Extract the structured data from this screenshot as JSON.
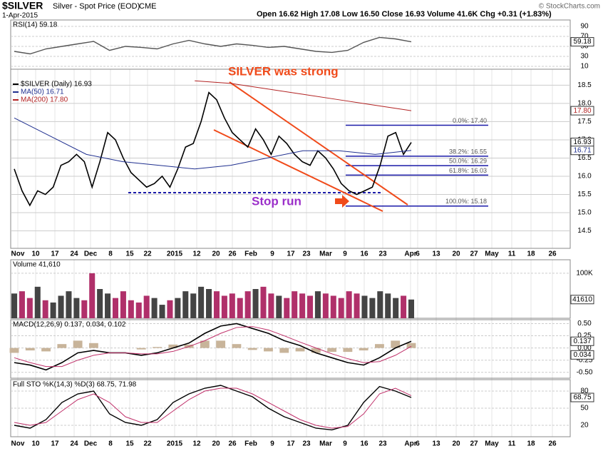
{
  "chart_data": [
    {
      "type": "header",
      "symbol": "$SILVER",
      "name": "Silver - Spot Price (EOD)",
      "exchange": "CME",
      "date": "1-Apr-2015",
      "quote": "Open 16.62 High 17.08 Low 16.50 Close 16.93 Volume 41.6K Chg +0.31 (+1.83%)",
      "credit": "© StockCharts.com",
      "categories": [
        "Nov",
        "10",
        "17",
        "24",
        "Dec",
        "8",
        "15",
        "22",
        "2015",
        "12",
        "20",
        "26",
        "Feb",
        "9",
        "17",
        "23",
        "Mar",
        "9",
        "16",
        "23",
        "Apr",
        "6",
        "13",
        "20",
        "27",
        "May",
        "11",
        "18",
        "26"
      ]
    },
    {
      "type": "line",
      "panel": "rsi",
      "legend": "RSI(14) 59.18",
      "tag": "59.18",
      "ylim": [
        0,
        100
      ],
      "yticks": [
        10,
        30,
        50,
        70,
        90
      ],
      "series": [
        {
          "name": "RSI",
          "color": "#555555",
          "values": [
            40,
            35,
            45,
            50,
            55,
            60,
            42,
            50,
            48,
            45,
            55,
            62,
            55,
            50,
            55,
            52,
            48,
            50,
            45,
            40,
            38,
            42,
            58,
            68,
            65,
            59.18
          ]
        }
      ]
    },
    {
      "type": "price",
      "panel": "price",
      "ylim": [
        14.0,
        18.9
      ],
      "yticks": [
        {
          "value": 14.5,
          "label": "14.5"
        },
        {
          "value": 15,
          "label": "15.0"
        },
        {
          "value": 15.5,
          "label": "15.5"
        },
        {
          "value": 16,
          "label": "16.0"
        },
        {
          "value": 16.5,
          "label": "16.5"
        },
        {
          "value": 17,
          "label": "17.0"
        },
        {
          "value": 17.5,
          "label": "17.5"
        },
        {
          "value": 18,
          "label": "18.0"
        },
        {
          "value": 18.5,
          "label": "18.5"
        }
      ],
      "series": [
        {
          "name": "$SILVER (Daily) 16.93",
          "tag": "16.93",
          "color": "#000000",
          "values": [
            16.2,
            15.6,
            15.2,
            15.6,
            15.5,
            15.7,
            16.3,
            16.4,
            16.6,
            16.4,
            15.7,
            16.4,
            17.2,
            17.0,
            16.5,
            16.1,
            15.9,
            15.7,
            15.8,
            16.0,
            15.7,
            16.2,
            16.8,
            16.9,
            17.5,
            18.3,
            18.1,
            17.6,
            17.2,
            17.0,
            16.8,
            17.3,
            17.0,
            16.6,
            17.1,
            16.9,
            16.6,
            16.4,
            16.3,
            16.7,
            16.5,
            16.2,
            15.8,
            15.6,
            15.5,
            15.6,
            15.7,
            16.3,
            17.1,
            17.2,
            16.6,
            16.93
          ]
        },
        {
          "name": "MA(50) 16.71",
          "tag": "16.71",
          "color": "#1f2f8f",
          "values": [
            17.6,
            17.1,
            16.6,
            16.4,
            16.3,
            16.2,
            16.3,
            16.5,
            16.7,
            16.7,
            16.6,
            16.71
          ]
        },
        {
          "name": "MA(200) 17.80",
          "tag": "17.80",
          "color": "#b22222",
          "values": [
            null,
            null,
            null,
            null,
            null,
            18.62,
            18.55,
            18.4,
            18.25,
            18.1,
            17.95,
            17.8
          ]
        }
      ],
      "levels": [
        {
          "value": 17.4,
          "label": "0.0%: 17.40"
        },
        {
          "value": 16.55,
          "label": "38.2%: 16.55"
        },
        {
          "value": 16.29,
          "label": "50.0%: 16.29"
        },
        {
          "value": 16.03,
          "label": "61.8%: 16.03"
        },
        {
          "value": 15.18,
          "label": "100.0%: 15.18"
        }
      ],
      "annotations": [
        "SILVER was strong",
        "Stop run"
      ]
    },
    {
      "type": "volume",
      "panel": "volume",
      "legend": "Volume 41,610",
      "tag": "41610",
      "ylim": [
        0,
        130000
      ],
      "yticks": [
        {
          "value": 100000,
          "label": "100K"
        }
      ],
      "values": [
        55000,
        60000,
        45000,
        70000,
        40000,
        35000,
        50000,
        60000,
        45000,
        40000,
        100000,
        65000,
        55000,
        45000,
        60000,
        40000,
        35000,
        50000,
        45000,
        30000,
        40000,
        45000,
        60000,
        55000,
        70000,
        65000,
        60000,
        50000,
        55000,
        45000,
        60000,
        65000,
        70000,
        55000,
        50000,
        45000,
        60000,
        55000,
        50000,
        60000,
        55000,
        50000,
        45000,
        60000,
        55000,
        50000,
        45000,
        60000,
        55000,
        45000,
        50000,
        41610
      ]
    },
    {
      "type": "macd",
      "panel": "macd",
      "legend": "MACD(12,26,9) 0.137, 0.034, 0.102",
      "tag": "0.137",
      "tag2": "0.034",
      "ylim": [
        -0.62,
        0.58
      ],
      "yticks": [
        {
          "value": 0.5,
          "label": "0.50"
        },
        {
          "value": 0.25,
          "label": "0.25"
        },
        {
          "value": 0,
          "label": "0.00"
        },
        {
          "value": -0.25,
          "label": "-0.25"
        },
        {
          "value": -0.5,
          "label": "-0.50"
        }
      ],
      "series": [
        {
          "name": "MACD",
          "color": "#000000",
          "values": [
            -0.3,
            -0.35,
            -0.45,
            -0.3,
            -0.1,
            -0.05,
            -0.1,
            -0.1,
            -0.15,
            -0.1,
            0.0,
            0.1,
            0.3,
            0.45,
            0.5,
            0.4,
            0.3,
            0.15,
            0.05,
            -0.1,
            -0.2,
            -0.3,
            -0.35,
            -0.2,
            0.0,
            0.137
          ]
        },
        {
          "name": "Signal",
          "color": "#c0306a",
          "values": [
            -0.2,
            -0.3,
            -0.38,
            -0.38,
            -0.25,
            -0.15,
            -0.1,
            -0.1,
            -0.12,
            -0.12,
            -0.07,
            0.03,
            0.15,
            0.3,
            0.42,
            0.44,
            0.37,
            0.25,
            0.12,
            0.0,
            -0.12,
            -0.22,
            -0.3,
            -0.28,
            -0.15,
            0.034
          ]
        },
        {
          "name": "Histogram",
          "color": "#c8b49a",
          "values": [
            -0.1,
            -0.05,
            -0.07,
            0.08,
            0.15,
            0.1,
            0,
            0,
            -0.03,
            0.02,
            0.07,
            0.07,
            0.15,
            0.15,
            0.08,
            -0.04,
            -0.07,
            -0.1,
            -0.07,
            -0.1,
            -0.08,
            -0.08,
            -0.05,
            0.08,
            0.15,
            0.102
          ]
        }
      ]
    },
    {
      "type": "line",
      "panel": "sto",
      "legend": "Full STO %K(14,3) %D(3) 68.75, 71.98",
      "tag": "68.75",
      "ylim": [
        0,
        100
      ],
      "yticks": [
        20,
        50,
        80
      ],
      "series": [
        {
          "name": "%K",
          "color": "#000000",
          "values": [
            20,
            15,
            30,
            60,
            75,
            80,
            40,
            25,
            20,
            30,
            60,
            75,
            85,
            90,
            80,
            70,
            50,
            35,
            25,
            15,
            12,
            20,
            60,
            88,
            80,
            68.75
          ]
        },
        {
          "name": "%D",
          "color": "#c0306a",
          "values": [
            25,
            20,
            25,
            45,
            65,
            75,
            60,
            35,
            25,
            25,
            45,
            65,
            80,
            85,
            85,
            75,
            60,
            45,
            30,
            20,
            15,
            18,
            40,
            75,
            85,
            71.98
          ]
        }
      ]
    }
  ]
}
